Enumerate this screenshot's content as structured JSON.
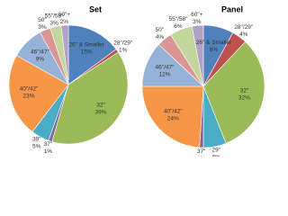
{
  "chart_data": [
    {
      "type": "pie",
      "title": "Set",
      "categories": [
        "26\" & Smaller",
        "28\"/29\"",
        "32\"",
        "37\"",
        "39\"",
        "40\"/42\"",
        "46\"/47\"",
        "50\"",
        "55\"/58\"",
        "60\"+"
      ],
      "values": [
        15,
        1,
        39,
        1,
        5,
        23,
        9,
        3,
        3,
        2
      ],
      "value_labels": [
        "15%",
        "1%",
        "39%",
        "1%",
        "5%",
        "23%",
        "9%",
        "3%",
        "3%",
        "2%"
      ],
      "colors": [
        "#4f81bd",
        "#c0504d",
        "#9bbb59",
        "#8064a2",
        "#4bacc6",
        "#f79646",
        "#95b3d7",
        "#d99694",
        "#c3d69b",
        "#b3a2c7"
      ]
    },
    {
      "type": "pie",
      "title": "Panel",
      "categories": [
        "26\" & Smaller",
        "28\"/29\"",
        "32\"",
        "29\"",
        "37\"",
        "40\"/42\"",
        "46\"/47\"",
        "50\"",
        "55\"/58\"",
        "60\"+"
      ],
      "values": [
        8,
        4,
        32,
        6,
        1,
        24,
        12,
        4,
        6,
        3
      ],
      "value_labels": [
        "8%",
        "4%",
        "32%",
        "6%",
        "1%",
        "24%",
        "12%",
        "4%",
        "6%",
        "3%"
      ],
      "colors": [
        "#4f81bd",
        "#c0504d",
        "#9bbb59",
        "#4bacc6",
        "#8064a2",
        "#f79646",
        "#95b3d7",
        "#d99694",
        "#c3d69b",
        "#b3a2c7"
      ]
    }
  ]
}
